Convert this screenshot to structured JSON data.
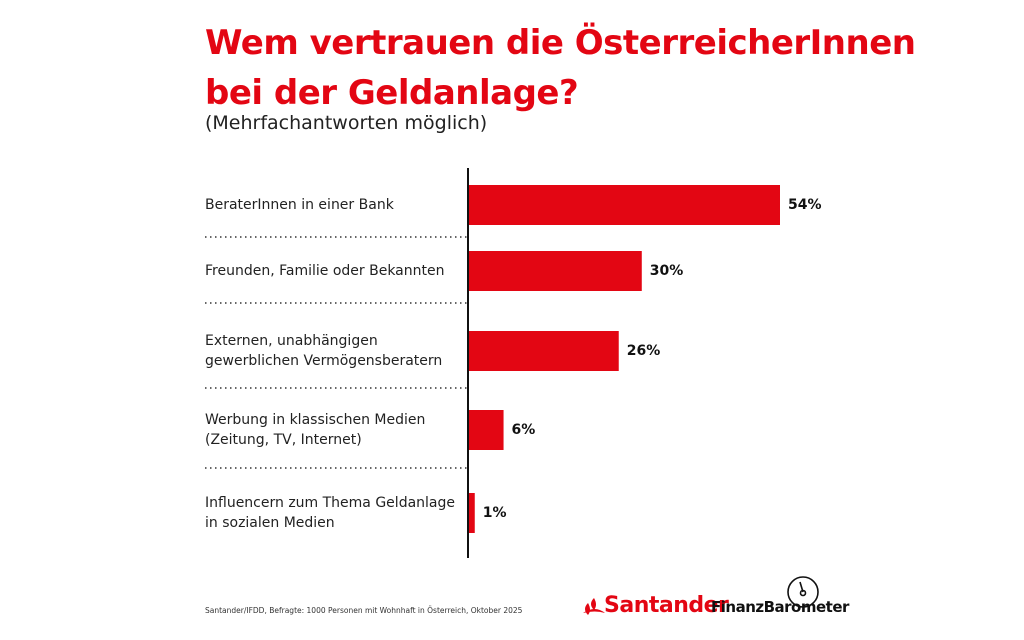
{
  "chart_data": {
    "type": "bar",
    "orientation": "horizontal",
    "title": "Wem vertrauen die ÖsterreicherInnen\nbei der Geldanlage?",
    "subtitle": "(Mehrfachantworten möglich)",
    "categories": [
      "BeraterInnen in einer Bank",
      "Freunden, Familie oder Bekannten",
      "Externen, unabhängigen\ngewerblichen Vermögensberatern",
      "Werbung in klassischen Medien\n(Zeitung, TV, Internet)",
      "Influencern zum Thema Geldanlage\nin sozialen Medien"
    ],
    "values": [
      54,
      30,
      26,
      6,
      1
    ],
    "value_labels": [
      "54%",
      "30%",
      "26%",
      "6%",
      "1%"
    ],
    "color": "#e30613",
    "source": "Santander/IFDD, Befragte: 1000 Personen mit Wohnhaft in Österreich, Oktober 2025",
    "brand": "Santander",
    "product": "FinanzBarometer"
  }
}
